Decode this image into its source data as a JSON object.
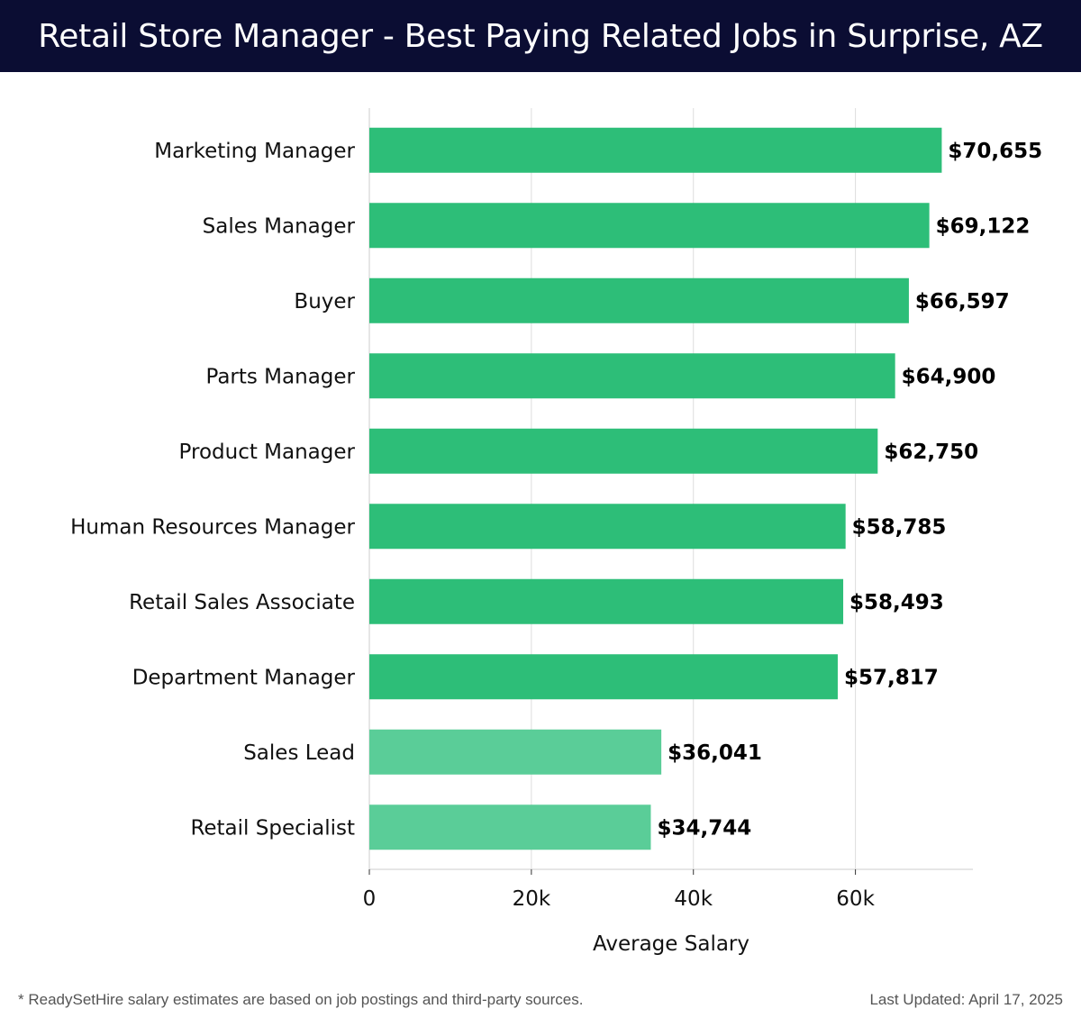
{
  "header": {
    "title": "Retail Store Manager - Best Paying Related Jobs in Surprise, AZ"
  },
  "footer": {
    "note": "* ReadySetHire salary estimates are based on job postings and third-party sources.",
    "last_updated": "Last Updated: April 17, 2025"
  },
  "colors": {
    "header_bg": "#0b0d33",
    "bar_primary": "#2dbe78",
    "bar_secondary": "#5acd98",
    "grid": "#dddddd"
  },
  "chart_data": {
    "type": "bar",
    "orientation": "horizontal",
    "categories": [
      "Marketing Manager",
      "Sales Manager",
      "Buyer",
      "Parts Manager",
      "Product Manager",
      "Human Resources Manager",
      "Retail Sales Associate",
      "Department Manager",
      "Sales Lead",
      "Retail Specialist"
    ],
    "values": [
      70655,
      69122,
      66597,
      64900,
      62750,
      58785,
      58493,
      57817,
      36041,
      34744
    ],
    "value_labels": [
      "$70,655",
      "$69,122",
      "$66,597",
      "$64,900",
      "$62,750",
      "$58,785",
      "$58,493",
      "$57,817",
      "$36,041",
      "$34,744"
    ],
    "xlabel": "Average Salary",
    "ylabel": "",
    "xlim": [
      0,
      74500
    ],
    "xticks": [
      0,
      20000,
      40000,
      60000
    ],
    "xtick_labels": [
      "0",
      "20k",
      "40k",
      "60k"
    ],
    "grid": true
  }
}
